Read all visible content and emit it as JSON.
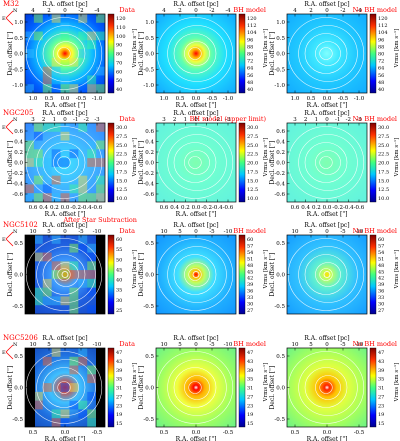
{
  "rows": [
    {
      "galaxy": "M32",
      "panels": [
        {
          "tag": "Data",
          "kind": "data",
          "map": "m32data"
        },
        {
          "tag": "BH model",
          "kind": "model",
          "map": "m32bh"
        },
        {
          "tag": "No BH model",
          "kind": "model",
          "map": "m32nobh"
        }
      ],
      "top_ticks": [
        "4",
        "2",
        "0",
        "-2",
        "-4"
      ],
      "bottom_ticks": [
        "1.0",
        "0.5",
        "0.0",
        "-0.5",
        "-1.0"
      ],
      "left_ticks": [
        "1.0",
        "0.5",
        "0.0",
        "-0.5",
        "-1.0"
      ],
      "cbar_ticks": [
        "120",
        "110",
        "100",
        "90",
        "80",
        "70",
        "60",
        "50",
        "40"
      ],
      "cbar_ticks_c": [
        "120",
        "112",
        "104",
        "96",
        "88",
        "80",
        "72",
        "64",
        "56",
        "48",
        "40"
      ],
      "compass": {
        "n": "N",
        "e": "E"
      },
      "has_top_axis": true,
      "has_bottom_axis": true,
      "note": ""
    },
    {
      "galaxy": "NGC205",
      "panels": [
        {
          "tag": "Data",
          "kind": "data",
          "map": "n205data"
        },
        {
          "tag": "BH model (upper limit)",
          "kind": "model",
          "map": "n205bh"
        },
        {
          "tag": "No BH model",
          "kind": "model",
          "map": "n205nobh"
        }
      ],
      "top_ticks": [
        "3",
        "2",
        "1",
        "0",
        "-1",
        "-2",
        "-3"
      ],
      "bottom_ticks": [
        "0.6",
        "0.4",
        "0.2",
        "0.0",
        "-0.2",
        "-0.4",
        "-0.6"
      ],
      "left_ticks": [
        "0.6",
        "0.4",
        "0.2",
        "0.0",
        "-0.2",
        "-0.4",
        "-0.6"
      ],
      "cbar_ticks": [
        "30.0",
        "27.5",
        "25.0",
        "22.5",
        "20.0",
        "17.5",
        "15.0",
        "12.5",
        "10.0"
      ],
      "cbar_ticks_c": [
        "30.0",
        "27.5",
        "25.0",
        "22.5",
        "20.0",
        "17.5",
        "15.0",
        "12.5",
        "10.0"
      ],
      "compass": {
        "n": "N",
        "e": "E"
      },
      "has_top_axis": true,
      "has_bottom_axis": true,
      "note": "After Star Subtraction"
    },
    {
      "galaxy": "NGC5102",
      "panels": [
        {
          "tag": "Data",
          "kind": "data",
          "map": "n5102data"
        },
        {
          "tag": "BH model",
          "kind": "model",
          "map": "n5102bh"
        },
        {
          "tag": "No BH model",
          "kind": "model",
          "map": "n5102nobh"
        }
      ],
      "top_ticks": [
        "10",
        "5",
        "0",
        "-5",
        "-10"
      ],
      "bottom_ticks": [
        "0.5",
        "0.0",
        "-0.5"
      ],
      "left_ticks": [
        "0.5",
        "0.0",
        "-0.5"
      ],
      "cbar_ticks": [
        "60",
        "55",
        "50",
        "45",
        "40",
        "35",
        "30",
        "25"
      ],
      "cbar_ticks_c": [
        "60",
        "57",
        "54",
        "51",
        "48",
        "45",
        "42",
        "39",
        "36",
        "33",
        "30",
        "27"
      ],
      "compass": {
        "n": "N",
        "e": "E"
      },
      "has_top_axis": true,
      "has_bottom_axis": false,
      "note": ""
    },
    {
      "galaxy": "NGC5206",
      "panels": [
        {
          "tag": "Data",
          "kind": "data",
          "map": "n5206data"
        },
        {
          "tag": "BH model",
          "kind": "model",
          "map": "n5206bh"
        },
        {
          "tag": "No BH model",
          "kind": "model",
          "map": "n5206nobh"
        }
      ],
      "top_ticks": [
        "10",
        "5",
        "0",
        "-5",
        "-10"
      ],
      "bottom_ticks": [
        "0.5",
        "0.0",
        "-0.5"
      ],
      "left_ticks": [
        "0.5",
        "0.0",
        "-0.5"
      ],
      "cbar_ticks": [
        "47",
        "43",
        "39",
        "35",
        "31",
        "27",
        "23",
        "19",
        "15"
      ],
      "cbar_ticks_c": [
        "47",
        "43",
        "39",
        "35",
        "31",
        "27",
        "23",
        "19",
        "15"
      ],
      "compass": {
        "n": "N",
        "e": "E"
      },
      "has_top_axis": true,
      "has_bottom_axis": true,
      "note": ""
    }
  ],
  "axis": {
    "top_label": "R.A. offset [pc]",
    "bottom_label": "R.A. offset [\"]",
    "left_label": "Decl. offset [\"]",
    "cbar_label": "Vrms [km s⁻¹]"
  },
  "colors": {
    "tag": "#ff0000",
    "contour": "#ffffff",
    "axis": "#000000"
  }
}
